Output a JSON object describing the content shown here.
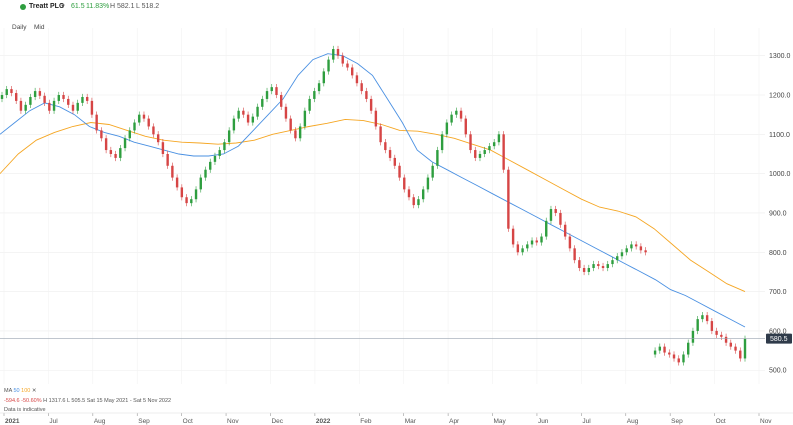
{
  "header": {
    "instrument": "Treatt PLC",
    "change": "61.5",
    "change_pct": "11.83%",
    "high": "H 582.1",
    "low": "L 518.2"
  },
  "periods": {
    "interval": "Daily",
    "price_type": "Mid"
  },
  "footer": {
    "ma_label": "MA",
    "ma50": "50",
    "ma100": "100",
    "close_x": "✕",
    "change_abs": "-594.6",
    "change_pct": "-50.60%",
    "hl": "H 1317.6 L 505.5",
    "range": "Sat 15 May 2021 - Sat 5 Nov 2022",
    "note": "Data is indicative"
  },
  "colors": {
    "up": "#2e9e3f",
    "down": "#d64545",
    "ma50": "#4a90e2",
    "ma100": "#f5a623"
  },
  "chart_data": {
    "type": "candlestick",
    "x_ticks": [
      "2021",
      "Jul",
      "Aug",
      "Sep",
      "Oct",
      "Nov",
      "Dec",
      "2022",
      "Feb",
      "Mar",
      "Apr",
      "May",
      "Jun",
      "Jul",
      "Aug",
      "Sep",
      "Oct",
      "Nov"
    ],
    "x_tick_bold": [
      "2021",
      "2022"
    ],
    "y_ticks": [
      500,
      600,
      700,
      800,
      900,
      1000,
      1100,
      1200,
      1300
    ],
    "ylim": [
      465,
      1345
    ],
    "last_price": "580.5",
    "price_line": 580.5,
    "grid": true,
    "series": [
      {
        "name": "50",
        "type": "ma",
        "values": [
          1100,
          1130,
          1160,
          1180,
          1170,
          1150,
          1120,
          1105,
          1095,
          1080,
          1070,
          1060,
          1050,
          1045,
          1045,
          1050,
          1070,
          1110,
          1150,
          1190,
          1250,
          1290,
          1305,
          1300,
          1280,
          1250,
          1190,
          1130,
          1060,
          1030,
          1010,
          990,
          970,
          950,
          930,
          910,
          890,
          870,
          850,
          830,
          810,
          790,
          770,
          750,
          730,
          705,
          690,
          670,
          650,
          630,
          610
        ]
      },
      {
        "name": "100",
        "type": "ma",
        "values": [
          1000,
          1050,
          1085,
          1105,
          1120,
          1130,
          1125,
          1110,
          1095,
          1085,
          1080,
          1078,
          1075,
          1078,
          1085,
          1100,
          1110,
          1120,
          1128,
          1138,
          1135,
          1125,
          1110,
          1108,
          1100,
          1090,
          1075,
          1060,
          1035,
          1010,
          985,
          960,
          935,
          915,
          905,
          890,
          860,
          820,
          780,
          750,
          720,
          700
        ]
      },
      {
        "name": "price",
        "type": "candles",
        "closes": [
          1200,
          1215,
          1205,
          1185,
          1160,
          1175,
          1195,
          1210,
          1198,
          1180,
          1160,
          1185,
          1200,
          1190,
          1175,
          1160,
          1180,
          1195,
          1185,
          1150,
          1110,
          1090,
          1060,
          1050,
          1040,
          1065,
          1090,
          1110,
          1130,
          1150,
          1140,
          1120,
          1100,
          1080,
          1050,
          1020,
          990,
          965,
          940,
          925,
          935,
          960,
          990,
          1010,
          1030,
          1045,
          1060,
          1080,
          1110,
          1140,
          1160,
          1150,
          1130,
          1145,
          1170,
          1190,
          1210,
          1220,
          1200,
          1170,
          1140,
          1110,
          1090,
          1120,
          1160,
          1190,
          1210,
          1230,
          1260,
          1290,
          1317,
          1300,
          1280,
          1270,
          1250,
          1230,
          1210,
          1190,
          1160,
          1120,
          1080,
          1060,
          1040,
          1020,
          990,
          960,
          940,
          920,
          935,
          960,
          990,
          1020,
          1060,
          1100,
          1130,
          1150,
          1160,
          1140,
          1100,
          1060,
          1040,
          1050,
          1060,
          1070,
          1080,
          1100,
          1010,
          860,
          820,
          800,
          810,
          820,
          830,
          825,
          840,
          880,
          910,
          900,
          870,
          840,
          810,
          780,
          760,
          750,
          760,
          770,
          765,
          760,
          770,
          780,
          790,
          800,
          810,
          820,
          815,
          805,
          800,
          540,
          550,
          560,
          545,
          540,
          530,
          520,
          540,
          570,
          600,
          630,
          640,
          625,
          600,
          590,
          585,
          570,
          560,
          550,
          530,
          580
        ]
      }
    ]
  }
}
